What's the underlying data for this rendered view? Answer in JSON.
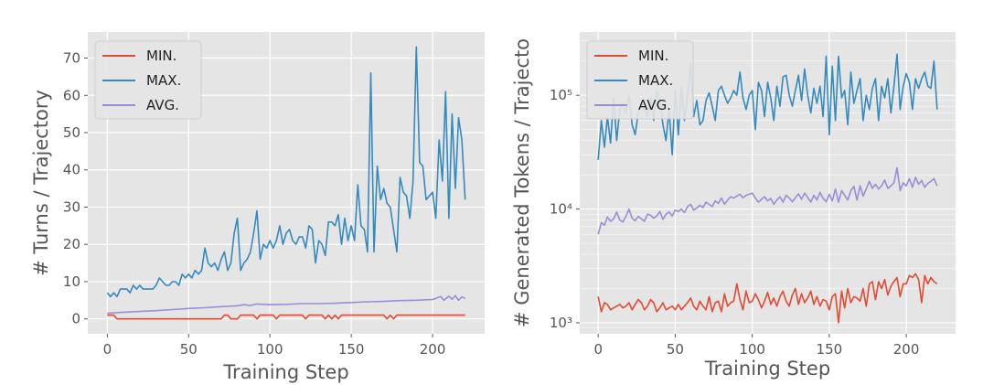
{
  "chart_data": [
    {
      "type": "line",
      "xlabel": "Training Step",
      "ylabel": "# Turns / Trajectory",
      "xlim": [
        -12,
        232
      ],
      "ylim": [
        -4,
        77
      ],
      "xticks": [
        0,
        50,
        100,
        150,
        200
      ],
      "xtick_labels": [
        "0",
        "50",
        "100",
        "150",
        "200"
      ],
      "yticks": [
        0,
        10,
        20,
        30,
        40,
        50,
        60,
        70
      ],
      "ytick_labels": [
        "0",
        "10",
        "20",
        "30",
        "40",
        "50",
        "60",
        "70"
      ],
      "yscale": "linear",
      "grid": true,
      "legend_position": "top-left",
      "series": [
        {
          "name": "MIN.",
          "color": "#E24A33",
          "x": [
            0,
            4,
            6,
            70,
            72,
            74,
            76,
            80,
            82,
            84,
            90,
            92,
            94,
            96,
            102,
            104,
            106,
            120,
            122,
            124,
            126,
            132,
            134,
            136,
            138,
            140,
            142,
            144,
            146,
            148,
            150,
            170,
            172,
            174,
            176,
            178,
            180,
            198,
            200,
            202,
            204,
            220
          ],
          "y": [
            1,
            1,
            0,
            0,
            1,
            1,
            0,
            0,
            1,
            1,
            1,
            0,
            1,
            1,
            1,
            0,
            1,
            1,
            0,
            1,
            1,
            1,
            0,
            1,
            0,
            1,
            0,
            1,
            1,
            1,
            1,
            1,
            0,
            1,
            0,
            1,
            1,
            1,
            1,
            1,
            1,
            1
          ]
        },
        {
          "name": "MAX.",
          "color": "#348ABD",
          "x": [
            0,
            2,
            4,
            6,
            8,
            10,
            12,
            14,
            16,
            18,
            20,
            22,
            24,
            26,
            28,
            30,
            32,
            34,
            36,
            38,
            40,
            42,
            44,
            46,
            48,
            50,
            52,
            54,
            56,
            58,
            60,
            62,
            64,
            66,
            68,
            70,
            72,
            74,
            76,
            78,
            80,
            82,
            84,
            86,
            88,
            90,
            92,
            94,
            96,
            98,
            100,
            102,
            104,
            106,
            108,
            110,
            112,
            114,
            116,
            118,
            120,
            122,
            124,
            126,
            128,
            130,
            132,
            134,
            136,
            138,
            140,
            142,
            144,
            146,
            148,
            150,
            152,
            154,
            156,
            158,
            160,
            162,
            164,
            166,
            168,
            170,
            172,
            174,
            176,
            178,
            180,
            182,
            184,
            186,
            188,
            190,
            192,
            194,
            196,
            198,
            200,
            202,
            204,
            206,
            208,
            210,
            212,
            214,
            216,
            218,
            220
          ],
          "y": [
            7,
            6,
            7,
            6,
            8,
            8,
            8,
            7,
            9,
            8,
            9,
            8,
            8,
            8,
            8,
            9,
            11,
            10,
            9,
            9,
            10,
            10,
            9,
            12,
            11,
            12,
            11,
            13,
            12,
            13,
            19,
            15,
            14,
            15,
            13,
            16,
            18,
            13,
            15,
            23,
            27,
            13,
            15,
            16,
            18,
            23,
            29,
            16,
            20,
            19,
            21,
            19,
            21,
            25,
            20,
            23,
            24,
            21,
            20,
            22,
            22,
            19,
            25,
            24,
            15,
            21,
            20,
            17,
            26,
            26,
            25,
            28,
            20,
            27,
            21,
            25,
            21,
            36,
            25,
            24,
            18,
            66,
            18,
            41,
            32,
            35,
            31,
            30,
            24,
            18,
            38,
            34,
            33,
            27,
            37,
            73,
            42,
            41,
            32,
            33,
            34,
            27,
            48,
            37,
            61,
            27,
            55,
            35,
            54,
            48,
            32
          ]
        },
        {
          "name": "AVG.",
          "color": "#988ED5",
          "x": [
            0,
            10,
            20,
            30,
            40,
            50,
            60,
            70,
            80,
            84,
            88,
            92,
            100,
            110,
            120,
            130,
            140,
            150,
            160,
            170,
            180,
            190,
            200,
            205,
            207,
            210,
            212,
            214,
            216,
            218,
            220
          ],
          "y": [
            1.5,
            1.8,
            2.0,
            2.2,
            2.5,
            2.8,
            3.0,
            3.3,
            3.5,
            3.8,
            3.6,
            4.0,
            3.8,
            3.9,
            4.1,
            4.1,
            4.2,
            4.4,
            4.6,
            4.7,
            4.9,
            5.0,
            5.2,
            6.0,
            5.0,
            6.1,
            5.3,
            6.2,
            5.0,
            5.9,
            5.5
          ]
        }
      ]
    },
    {
      "type": "line",
      "xlabel": "Training Step",
      "ylabel": "# Generated Tokens / Trajecto",
      "xlim": [
        -12,
        232
      ],
      "ylim": [
        800,
        360000
      ],
      "xticks": [
        0,
        50,
        100,
        150,
        200
      ],
      "xtick_labels": [
        "0",
        "50",
        "100",
        "150",
        "200"
      ],
      "yticks": [
        1000,
        10000,
        100000
      ],
      "ytick_labels": [
        "10³",
        "10⁴",
        "10⁵"
      ],
      "yscale": "log",
      "grid": true,
      "legend_position": "top-left",
      "series": [
        {
          "name": "MIN.",
          "color": "#E24A33",
          "x": [
            0,
            2,
            4,
            6,
            8,
            10,
            12,
            14,
            16,
            18,
            20,
            22,
            24,
            26,
            28,
            30,
            32,
            34,
            36,
            38,
            40,
            42,
            44,
            46,
            48,
            50,
            52,
            54,
            56,
            58,
            60,
            62,
            64,
            66,
            68,
            70,
            72,
            74,
            76,
            78,
            80,
            82,
            84,
            86,
            88,
            90,
            92,
            94,
            96,
            98,
            100,
            102,
            104,
            106,
            108,
            110,
            112,
            114,
            116,
            118,
            120,
            122,
            124,
            126,
            128,
            130,
            132,
            134,
            136,
            138,
            140,
            142,
            144,
            146,
            148,
            150,
            152,
            154,
            156,
            158,
            160,
            162,
            164,
            166,
            168,
            170,
            172,
            174,
            176,
            178,
            180,
            182,
            184,
            186,
            188,
            190,
            192,
            194,
            196,
            198,
            200,
            202,
            204,
            206,
            208,
            210,
            212,
            214,
            216,
            218,
            220
          ],
          "y": [
            1700,
            1250,
            1500,
            1450,
            1300,
            1350,
            1400,
            1450,
            1350,
            1400,
            1500,
            1300,
            1450,
            1600,
            1500,
            1300,
            1400,
            1600,
            1500,
            1250,
            1350,
            1500,
            1300,
            1350,
            1400,
            1300,
            1450,
            1300,
            1400,
            1500,
            1650,
            1400,
            1300,
            1550,
            1400,
            1300,
            1700,
            1250,
            1500,
            1550,
            1250,
            1800,
            1400,
            1500,
            1550,
            2200,
            1600,
            1300,
            1900,
            1500,
            1550,
            1800,
            1600,
            1350,
            1550,
            1850,
            1450,
            1650,
            1400,
            1700,
            1900,
            1550,
            1400,
            1750,
            2000,
            1450,
            1800,
            1500,
            1650,
            1900,
            1450,
            1700,
            1400,
            1600,
            1550,
            1300,
            1700,
            1800,
            1000,
            1900,
            1350,
            2000,
            1500,
            1700,
            1650,
            1550,
            2000,
            1400,
            2200,
            2300,
            1600,
            2300,
            2000,
            2400,
            1750,
            2100,
            2300,
            2500,
            1700,
            2200,
            2200,
            2600,
            2500,
            2700,
            2400,
            1500,
            2600,
            2200,
            2500,
            2300,
            2200
          ]
        },
        {
          "name": "MAX.",
          "color": "#348ABD",
          "x": [
            0,
            2,
            4,
            6,
            8,
            10,
            12,
            14,
            16,
            18,
            20,
            22,
            24,
            26,
            28,
            30,
            32,
            34,
            36,
            38,
            40,
            42,
            44,
            46,
            48,
            50,
            52,
            54,
            56,
            58,
            60,
            62,
            64,
            66,
            68,
            70,
            72,
            74,
            76,
            78,
            80,
            82,
            84,
            86,
            88,
            90,
            92,
            94,
            96,
            98,
            100,
            102,
            104,
            106,
            108,
            110,
            112,
            114,
            116,
            118,
            120,
            122,
            124,
            126,
            128,
            130,
            132,
            134,
            136,
            138,
            140,
            142,
            144,
            146,
            148,
            150,
            152,
            154,
            156,
            158,
            160,
            162,
            164,
            166,
            168,
            170,
            172,
            174,
            176,
            178,
            180,
            182,
            184,
            186,
            188,
            190,
            192,
            194,
            196,
            198,
            200,
            202,
            204,
            206,
            208,
            210,
            212,
            214,
            216,
            218,
            220
          ],
          "y": [
            27000,
            60000,
            35000,
            65000,
            38000,
            95000,
            40000,
            75000,
            85000,
            70000,
            100000,
            55000,
            45000,
            70000,
            85000,
            75000,
            65000,
            95000,
            60000,
            110000,
            90000,
            55000,
            40000,
            75000,
            30000,
            110000,
            45000,
            120000,
            60000,
            100000,
            190000,
            65000,
            90000,
            55000,
            60000,
            90000,
            105000,
            80000,
            60000,
            110000,
            120000,
            100000,
            85000,
            95000,
            110000,
            100000,
            160000,
            95000,
            75000,
            100000,
            110000,
            50000,
            130000,
            110000,
            65000,
            130000,
            95000,
            60000,
            120000,
            80000,
            145000,
            150000,
            100000,
            80000,
            110000,
            150000,
            90000,
            170000,
            100000,
            70000,
            115000,
            85000,
            120000,
            65000,
            220000,
            45000,
            180000,
            60000,
            220000,
            95000,
            110000,
            55000,
            160000,
            85000,
            110000,
            140000,
            60000,
            100000,
            75000,
            115000,
            140000,
            60000,
            120000,
            95000,
            140000,
            70000,
            120000,
            230000,
            75000,
            120000,
            155000,
            130000,
            75000,
            140000,
            115000,
            140000,
            160000,
            120000,
            115000,
            200000,
            75000
          ]
        },
        {
          "name": "AVG.",
          "color": "#988ED5",
          "x": [
            0,
            2,
            4,
            6,
            8,
            10,
            12,
            14,
            16,
            18,
            20,
            22,
            24,
            26,
            28,
            30,
            32,
            34,
            36,
            38,
            40,
            42,
            44,
            46,
            48,
            50,
            52,
            54,
            56,
            58,
            60,
            62,
            64,
            66,
            68,
            70,
            72,
            74,
            76,
            78,
            80,
            82,
            84,
            86,
            88,
            90,
            92,
            94,
            96,
            98,
            100,
            102,
            104,
            106,
            108,
            110,
            112,
            114,
            116,
            118,
            120,
            122,
            124,
            126,
            128,
            130,
            132,
            134,
            136,
            138,
            140,
            142,
            144,
            146,
            148,
            150,
            152,
            154,
            156,
            158,
            160,
            162,
            164,
            166,
            168,
            170,
            172,
            174,
            176,
            178,
            180,
            182,
            184,
            186,
            188,
            190,
            192,
            194,
            196,
            198,
            200,
            202,
            204,
            206,
            208,
            210,
            212,
            214,
            216,
            218,
            220
          ],
          "y": [
            6000,
            7600,
            7200,
            8500,
            7800,
            8200,
            9400,
            8000,
            7700,
            8600,
            10000,
            8300,
            7900,
            8600,
            8200,
            7800,
            9000,
            8800,
            8300,
            8700,
            9500,
            8100,
            9000,
            9400,
            8700,
            9800,
            9500,
            10000,
            9300,
            10500,
            11000,
            9800,
            10200,
            10800,
            10300,
            11500,
            11000,
            10500,
            11800,
            11200,
            12500,
            11000,
            12000,
            12800,
            12500,
            13000,
            13500,
            12600,
            13200,
            13500,
            13800,
            12500,
            11500,
            12200,
            12800,
            11800,
            12400,
            11000,
            12000,
            12800,
            11500,
            13200,
            12500,
            11600,
            12600,
            13600,
            12200,
            13800,
            12600,
            11500,
            13200,
            12000,
            14000,
            12400,
            11600,
            13500,
            11800,
            15000,
            11500,
            14500,
            13200,
            12000,
            14500,
            15800,
            12000,
            16000,
            13000,
            15000,
            17500,
            15200,
            16500,
            15000,
            16000,
            18000,
            15200,
            16000,
            17000,
            23000,
            14500,
            17000,
            16000,
            18500,
            15500,
            19000,
            16500,
            17800,
            15500,
            16800,
            17500,
            18500,
            16000
          ]
        }
      ]
    }
  ]
}
